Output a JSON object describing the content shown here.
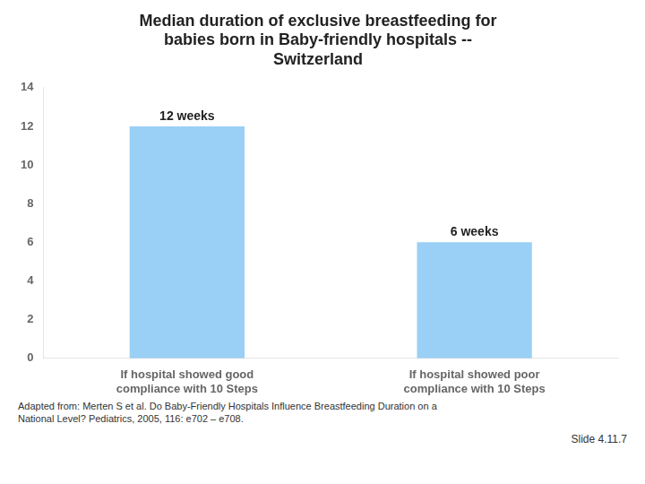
{
  "chart_data": {
    "type": "bar",
    "title": [
      "Median duration of exclusive breastfeeding for",
      "babies born in Baby-friendly hospitals --",
      "Switzerland"
    ],
    "categories": [
      "If hospital showed good\ncompliance with 10 Steps",
      "If hospital showed poor\ncompliance with 10 Steps"
    ],
    "values": [
      12,
      6
    ],
    "value_labels": [
      "12 weeks",
      "6 weeks"
    ],
    "data_labels": true,
    "ylim": [
      0,
      14
    ],
    "yticks": [
      0,
      2,
      4,
      6,
      8,
      10,
      12,
      14
    ],
    "grid": false,
    "annotations": [
      "Adapted from: Merten S et al. Do Baby-Friendly Hospitals Influence Breastfeeding Duration on a",
      "National Level? Pediatrics, 2005, 116: e702 – e708.",
      "Slide 4.11.7"
    ]
  }
}
